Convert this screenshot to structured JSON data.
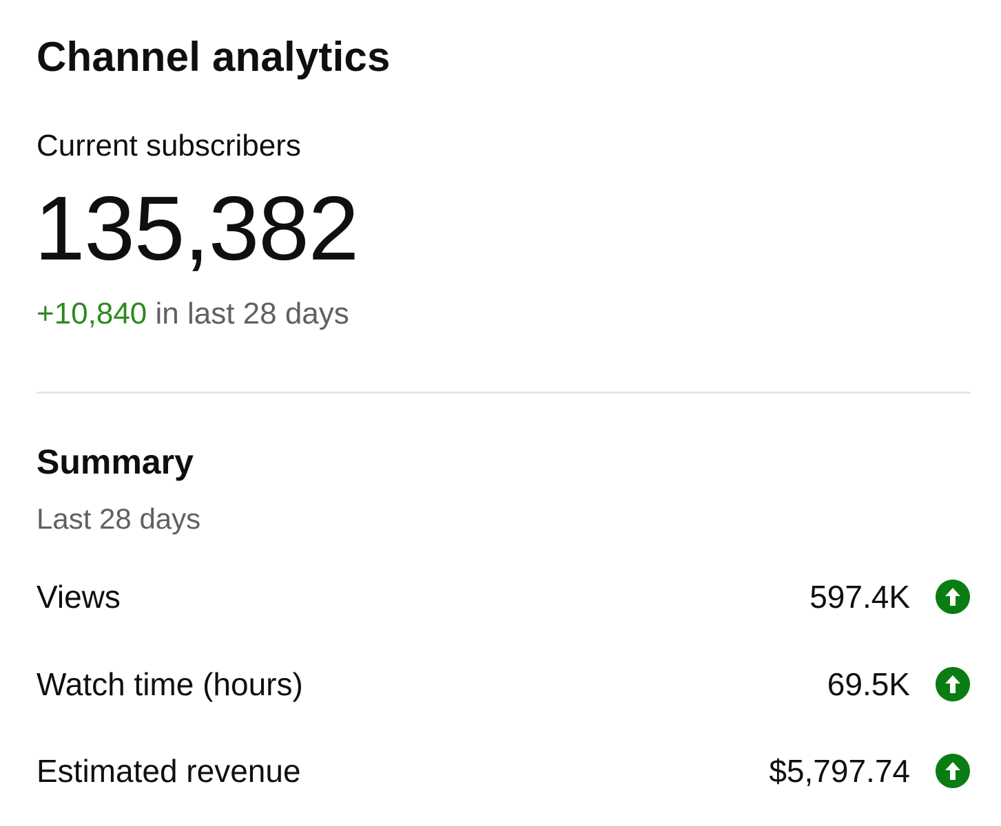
{
  "header": {
    "title": "Channel analytics"
  },
  "subscribers": {
    "label": "Current subscribers",
    "count": "135,382",
    "delta": "+10,840",
    "delta_suffix": " in last 28 days"
  },
  "summary": {
    "title": "Summary",
    "period": "Last 28 days",
    "metrics": [
      {
        "label": "Views",
        "value": "597.4K",
        "trend_icon": "arrow-up-circle-icon"
      },
      {
        "label": "Watch time (hours)",
        "value": "69.5K",
        "trend_icon": "arrow-up-circle-icon"
      },
      {
        "label": "Estimated revenue",
        "value": "$5,797.74",
        "trend_icon": "arrow-up-circle-icon"
      }
    ]
  },
  "colors": {
    "positive": "#2b8a1f",
    "trend_up": "#0a7d12",
    "secondary_text": "#606060",
    "divider": "#e5e5e5"
  }
}
